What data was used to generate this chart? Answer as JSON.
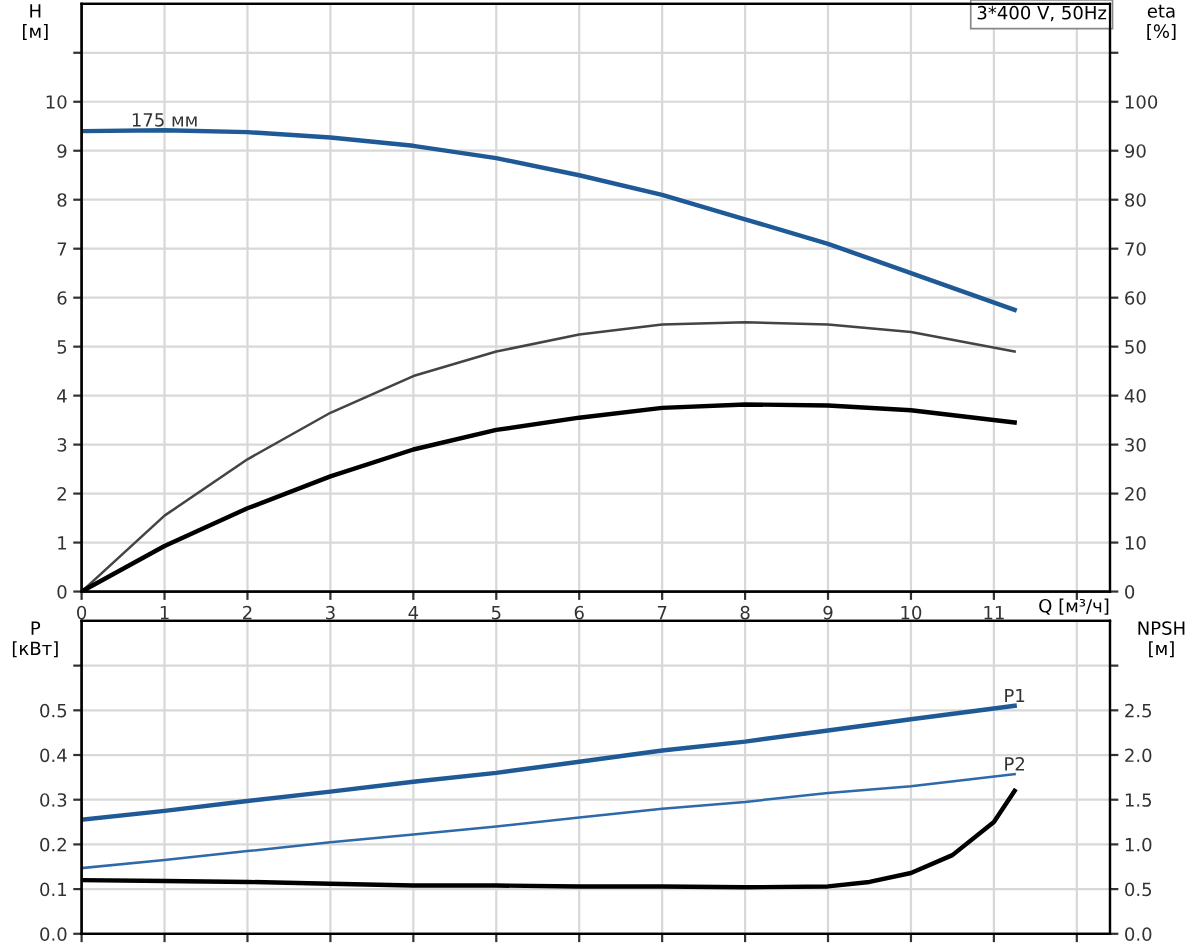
{
  "chart_data": [
    {
      "type": "line",
      "subtitle": "3*400 V, 50Hz",
      "ylabel": "H\n[м]",
      "y2label": "eta\n[%]",
      "xlabel": "Q [м³/ч]",
      "xlim": [
        0,
        12.4
      ],
      "xticks": [
        0,
        1,
        2,
        3,
        4,
        5,
        6,
        7,
        8,
        9,
        10,
        11,
        {
          "value": 12,
          "label": null
        }
      ],
      "ylim": [
        0,
        12
      ],
      "yticks": [
        0,
        1,
        2,
        3,
        4,
        5,
        6,
        7,
        8,
        9,
        10,
        {
          "value": 11,
          "label": null
        }
      ],
      "y2lim": [
        0,
        120
      ],
      "y2ticks": [
        0,
        10,
        20,
        30,
        40,
        50,
        60,
        70,
        80,
        90,
        100,
        {
          "value": 110,
          "label": null
        }
      ],
      "grid": true,
      "legend": false,
      "marker": "none",
      "line_style": "solid",
      "series": [
        {
          "name": "175 мм",
          "color": "#1f5a96",
          "x": [
            0,
            1,
            2,
            3,
            4,
            5,
            6,
            7,
            8,
            9,
            10,
            11.25
          ],
          "values": [
            9.4,
            9.42,
            9.38,
            9.27,
            9.1,
            8.85,
            8.5,
            8.1,
            7.6,
            7.1,
            6.5,
            5.75
          ]
        },
        {
          "color": "#444444",
          "axis": "y2",
          "x": [
            0,
            1,
            2,
            3,
            4,
            5,
            6,
            7,
            8,
            9,
            10,
            11.25
          ],
          "values": [
            0,
            15.5,
            27,
            36.5,
            44,
            49,
            52.5,
            54.5,
            55,
            54.5,
            53,
            49
          ]
        },
        {
          "color": "#000000",
          "axis": "y2",
          "x": [
            0,
            1,
            2,
            3,
            4,
            5,
            6,
            7,
            8,
            9,
            10,
            11.25
          ],
          "values": [
            0,
            9.3,
            17,
            23.5,
            29,
            33,
            35.5,
            37.5,
            38.2,
            38,
            37,
            34.5
          ]
        }
      ]
    },
    {
      "type": "line",
      "ylabel": "P\n[кВт]",
      "y2label": "NPSH\n[м]",
      "tick_labels": "y",
      "xlim": [
        0,
        12.4
      ],
      "ylim": [
        0,
        0.7
      ],
      "yticks": [
        {
          "value": 0,
          "label": "0.0"
        },
        0.1,
        0.2,
        0.3,
        0.4,
        0.5,
        {
          "value": 0.6,
          "label": null
        }
      ],
      "y2lim": [
        0,
        3.5
      ],
      "y2ticks": [
        {
          "value": 0,
          "label": "0.0"
        },
        0.5,
        {
          "value": 1,
          "label": "1.0"
        },
        1.5,
        {
          "value": 2,
          "label": "2.0"
        },
        2.5,
        {
          "value": 3,
          "label": null
        }
      ],
      "grid": true,
      "legend": false,
      "marker": "none",
      "line_style": "solid",
      "series": [
        {
          "name": "P1",
          "color": "#1f5a96",
          "x": [
            0,
            1,
            2,
            3,
            4,
            5,
            6,
            7,
            8,
            9,
            10,
            11.25
          ],
          "values": [
            0.255,
            0.275,
            0.297,
            0.318,
            0.34,
            0.36,
            0.385,
            0.41,
            0.43,
            0.455,
            0.48,
            0.51
          ]
        },
        {
          "name": "P2",
          "color": "#2e6aa8",
          "x": [
            0,
            1,
            2,
            3,
            4,
            5,
            6,
            7,
            8,
            9,
            10,
            11.25
          ],
          "values": [
            0.147,
            0.165,
            0.185,
            0.205,
            0.222,
            0.24,
            0.26,
            0.28,
            0.295,
            0.315,
            0.33,
            0.357
          ]
        },
        {
          "color": "#000000",
          "axis": "y2",
          "x": [
            0,
            1,
            2,
            3,
            4,
            5,
            6,
            7,
            8,
            9,
            9.5,
            10,
            10.5,
            11,
            11.25
          ],
          "values": [
            0.6,
            0.59,
            0.58,
            0.56,
            0.54,
            0.54,
            0.53,
            0.53,
            0.52,
            0.53,
            0.58,
            0.68,
            0.88,
            1.25,
            1.6
          ]
        }
      ]
    }
  ]
}
